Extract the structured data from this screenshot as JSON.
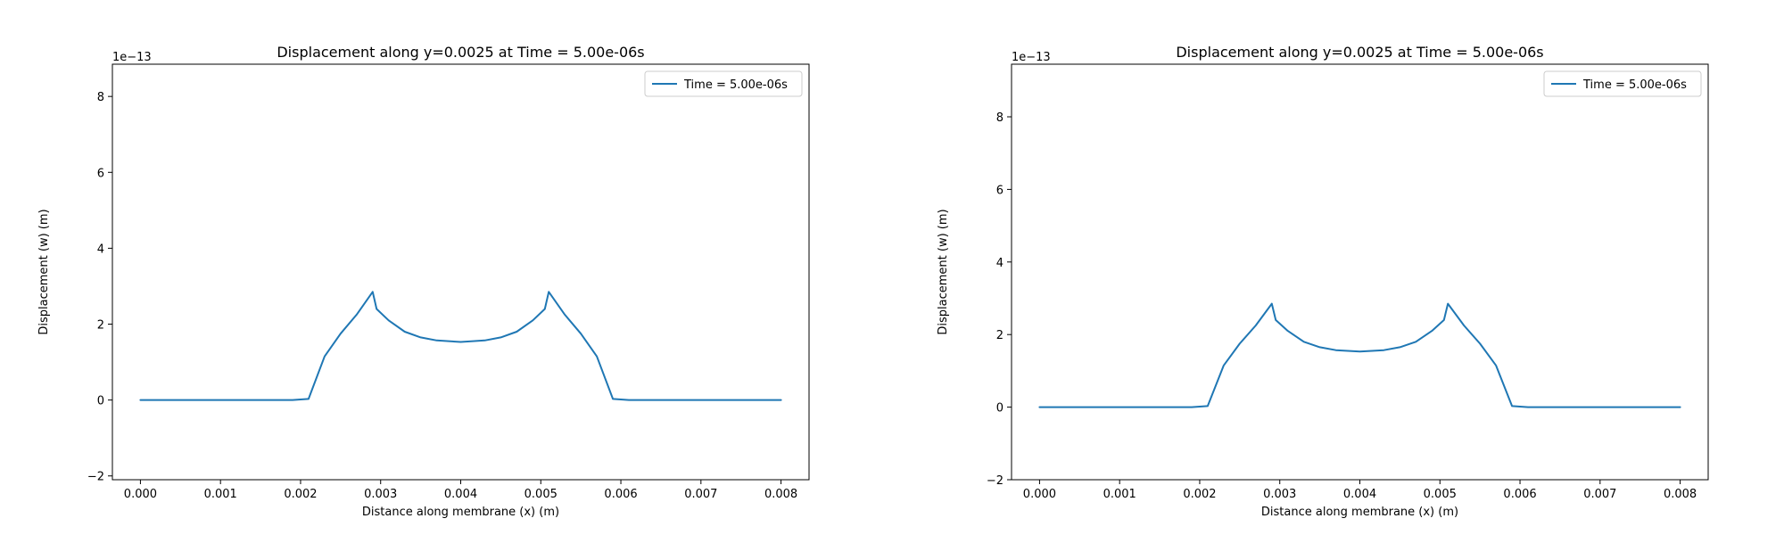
{
  "chart_data": [
    {
      "type": "line",
      "title": "Displacement along y=0.0025 at Time = 5.00e-06s",
      "xlabel": "Distance along membrane (x) (m)",
      "ylabel": "Displacement (w) (m)",
      "offset_text": "1e−13",
      "xlim": [
        -0.00035,
        0.00835
      ],
      "ylim": [
        -2.1,
        8.85
      ],
      "xticks": [
        0.0,
        0.001,
        0.002,
        0.003,
        0.004,
        0.005,
        0.006,
        0.007,
        0.008
      ],
      "xtick_labels": [
        "0.000",
        "0.001",
        "0.002",
        "0.003",
        "0.004",
        "0.005",
        "0.006",
        "0.007",
        "0.008"
      ],
      "yticks": [
        -2,
        0,
        2,
        4,
        6,
        8
      ],
      "ytick_labels": [
        "−2",
        "0",
        "2",
        "4",
        "6",
        "8"
      ],
      "grid": false,
      "legend_position": "top-right",
      "series": [
        {
          "name": "Time = 5.00e-06s",
          "color": "#1f77b4",
          "x": [
            0.0,
            0.0005,
            0.001,
            0.0015,
            0.0019,
            0.0021,
            0.0023,
            0.0025,
            0.0027,
            0.0029,
            0.00295,
            0.0031,
            0.0033,
            0.0035,
            0.0037,
            0.004,
            0.0043,
            0.0045,
            0.0047,
            0.0049,
            0.00505,
            0.0051,
            0.0053,
            0.0055,
            0.0057,
            0.0059,
            0.0061,
            0.0065,
            0.007,
            0.0075,
            0.008
          ],
          "y": [
            0.0,
            0.0,
            0.0,
            0.0,
            0.0,
            0.03,
            1.15,
            1.75,
            2.25,
            2.85,
            2.4,
            2.1,
            1.8,
            1.65,
            1.57,
            1.53,
            1.57,
            1.65,
            1.8,
            2.1,
            2.4,
            2.85,
            2.25,
            1.75,
            1.15,
            0.03,
            0.0,
            0.0,
            0.0,
            0.0,
            0.0
          ]
        }
      ]
    },
    {
      "type": "line",
      "title": "Displacement along y=0.0025 at Time = 5.00e-06s",
      "xlabel": "Distance along membrane (x) (m)",
      "ylabel": "Displacement (w) (m)",
      "offset_text": "1e−13",
      "xlim": [
        -0.00035,
        0.00835
      ],
      "ylim": [
        -2.0,
        9.45
      ],
      "xticks": [
        0.0,
        0.001,
        0.002,
        0.003,
        0.004,
        0.005,
        0.006,
        0.007,
        0.008
      ],
      "xtick_labels": [
        "0.000",
        "0.001",
        "0.002",
        "0.003",
        "0.004",
        "0.005",
        "0.006",
        "0.007",
        "0.008"
      ],
      "yticks": [
        -2,
        0,
        2,
        4,
        6,
        8
      ],
      "ytick_labels": [
        "−2",
        "0",
        "2",
        "4",
        "6",
        "8"
      ],
      "grid": false,
      "legend_position": "top-right",
      "series": [
        {
          "name": "Time = 5.00e-06s",
          "color": "#1f77b4",
          "x": [
            0.0,
            0.0005,
            0.001,
            0.0015,
            0.0019,
            0.0021,
            0.0023,
            0.0025,
            0.0027,
            0.0029,
            0.00295,
            0.0031,
            0.0033,
            0.0035,
            0.0037,
            0.004,
            0.0043,
            0.0045,
            0.0047,
            0.0049,
            0.00505,
            0.0051,
            0.0053,
            0.0055,
            0.0057,
            0.0059,
            0.0061,
            0.0065,
            0.007,
            0.0075,
            0.008
          ],
          "y": [
            0.0,
            0.0,
            0.0,
            0.0,
            0.0,
            0.03,
            1.15,
            1.75,
            2.25,
            2.85,
            2.4,
            2.1,
            1.8,
            1.65,
            1.57,
            1.53,
            1.57,
            1.65,
            1.8,
            2.1,
            2.4,
            2.85,
            2.25,
            1.75,
            1.15,
            0.03,
            0.0,
            0.0,
            0.0,
            0.0,
            0.0
          ]
        }
      ]
    }
  ]
}
